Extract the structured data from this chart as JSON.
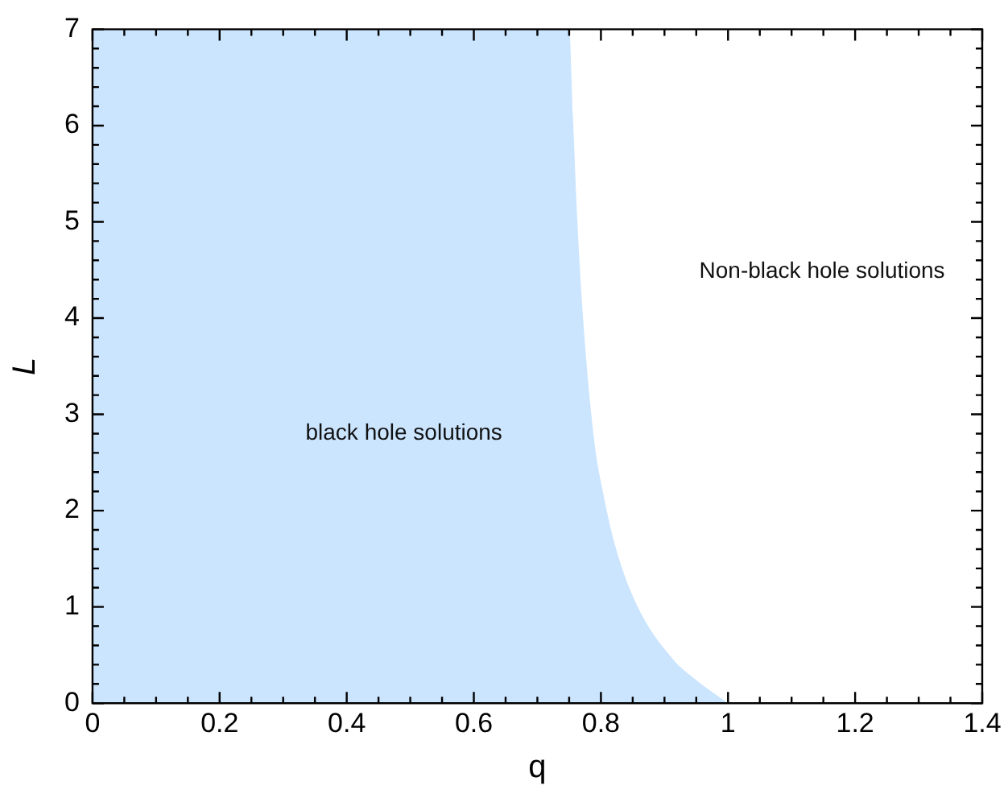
{
  "chart_data": {
    "type": "area",
    "xlabel": "q",
    "ylabel": "L",
    "series": [
      {
        "color": "#cce5ff",
        "x": [
          0,
          0.75,
          0.756,
          0.763,
          0.773,
          0.79,
          0.803,
          0.824,
          0.858,
          0.913,
          0.95,
          1.0
        ],
        "values": [
          7,
          7,
          6.1,
          5,
          3.9,
          2.7,
          2.2,
          1.6,
          1.0,
          0.46,
          0.24,
          0
        ]
      }
    ],
    "xlim": [
      0,
      1.4
    ],
    "xticks": [
      0,
      0.2,
      0.4,
      0.6,
      0.8,
      1,
      1.2,
      1.4
    ],
    "ylim": [
      0,
      7
    ],
    "yticks": [
      0,
      1,
      2,
      3,
      4,
      5,
      6,
      7
    ],
    "grid": false,
    "legend": false,
    "annotations": [
      "black hole solutions",
      "Non-black hole solutions"
    ]
  }
}
